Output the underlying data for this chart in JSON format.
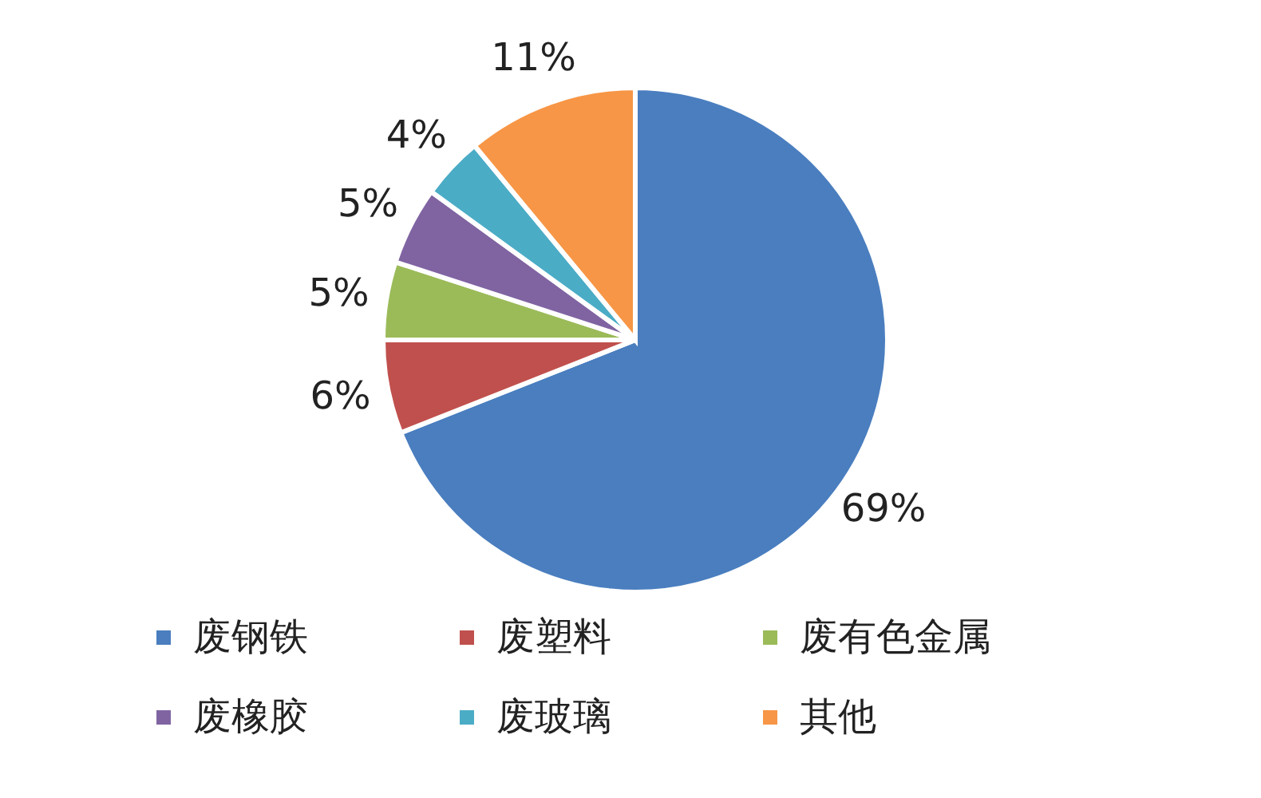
{
  "chart_data": {
    "type": "pie",
    "categories": [
      "废钢铁",
      "废塑料",
      "废有色金属",
      "废橡胶",
      "废玻璃",
      "其他"
    ],
    "values": [
      69,
      6,
      5,
      5,
      4,
      11
    ],
    "colors": [
      "#4a7ebf",
      "#c0504d",
      "#9bbb59",
      "#8064a2",
      "#4bacc6",
      "#f79646"
    ],
    "value_labels": [
      "69%",
      "6%",
      "5%",
      "5%",
      "4%",
      "11%"
    ],
    "legend": "bottom"
  }
}
